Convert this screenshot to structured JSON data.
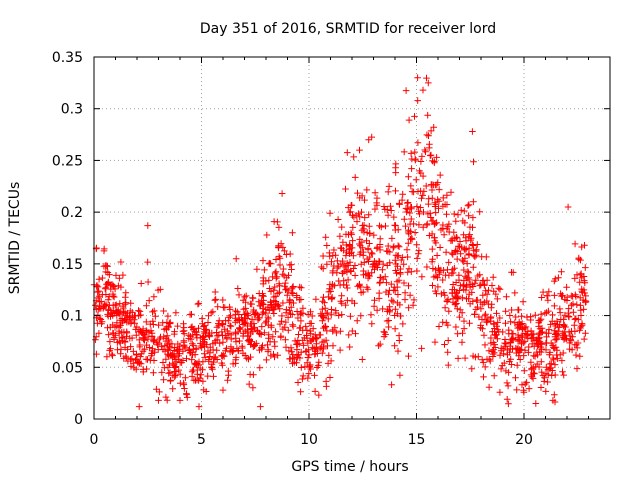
{
  "chart_data": {
    "type": "scatter",
    "title": "Day 351 of 2016, SRMTID for receiver lord",
    "xlabel": "GPS time / hours",
    "ylabel": "SRMTID / TECUs",
    "xlim": [
      0,
      24
    ],
    "ylim": [
      0,
      0.35
    ],
    "xticks": [
      "0",
      "5",
      "10",
      "15",
      "20"
    ],
    "yticks": [
      "0",
      "0.05",
      "0.1",
      "0.15",
      "0.2",
      "0.25",
      "0.3",
      "0.35"
    ],
    "grid": true,
    "marker": "plus",
    "series": [
      {
        "name": "SRMTID",
        "color": "#ff0000",
        "baseline_points": [
          {
            "x": 0.0,
            "y": 0.11
          },
          {
            "x": 0.5,
            "y": 0.12
          },
          {
            "x": 1.0,
            "y": 0.09
          },
          {
            "x": 2.0,
            "y": 0.08
          },
          {
            "x": 3.0,
            "y": 0.07
          },
          {
            "x": 4.0,
            "y": 0.06
          },
          {
            "x": 5.0,
            "y": 0.065
          },
          {
            "x": 6.0,
            "y": 0.075
          },
          {
            "x": 7.0,
            "y": 0.08
          },
          {
            "x": 8.0,
            "y": 0.1
          },
          {
            "x": 8.8,
            "y": 0.13
          },
          {
            "x": 9.5,
            "y": 0.08
          },
          {
            "x": 10.0,
            "y": 0.065
          },
          {
            "x": 10.6,
            "y": 0.085
          },
          {
            "x": 11.0,
            "y": 0.12
          },
          {
            "x": 12.0,
            "y": 0.16
          },
          {
            "x": 13.0,
            "y": 0.15
          },
          {
            "x": 14.0,
            "y": 0.13
          },
          {
            "x": 15.0,
            "y": 0.21
          },
          {
            "x": 15.5,
            "y": 0.22
          },
          {
            "x": 16.0,
            "y": 0.16
          },
          {
            "x": 17.0,
            "y": 0.14
          },
          {
            "x": 17.7,
            "y": 0.15
          },
          {
            "x": 18.0,
            "y": 0.1
          },
          {
            "x": 19.0,
            "y": 0.07
          },
          {
            "x": 20.0,
            "y": 0.07
          },
          {
            "x": 21.0,
            "y": 0.065
          },
          {
            "x": 22.0,
            "y": 0.09
          },
          {
            "x": 22.8,
            "y": 0.11
          }
        ],
        "spread_points": [
          {
            "x": 0.0,
            "y": 0.045
          },
          {
            "x": 1.0,
            "y": 0.035
          },
          {
            "x": 3.0,
            "y": 0.035
          },
          {
            "x": 5.0,
            "y": 0.03
          },
          {
            "x": 7.0,
            "y": 0.035
          },
          {
            "x": 8.5,
            "y": 0.05
          },
          {
            "x": 10.0,
            "y": 0.03
          },
          {
            "x": 11.5,
            "y": 0.06
          },
          {
            "x": 13.0,
            "y": 0.06
          },
          {
            "x": 15.0,
            "y": 0.09
          },
          {
            "x": 16.5,
            "y": 0.07
          },
          {
            "x": 18.0,
            "y": 0.05
          },
          {
            "x": 19.5,
            "y": 0.035
          },
          {
            "x": 21.0,
            "y": 0.035
          },
          {
            "x": 22.8,
            "y": 0.045
          }
        ],
        "notable_points": [
          {
            "x": 15.05,
            "y": 0.33
          },
          {
            "x": 15.55,
            "y": 0.325
          },
          {
            "x": 15.3,
            "y": 0.318
          },
          {
            "x": 15.8,
            "y": 0.282
          },
          {
            "x": 17.6,
            "y": 0.278
          },
          {
            "x": 12.35,
            "y": 0.26
          },
          {
            "x": 8.75,
            "y": 0.218
          },
          {
            "x": 22.05,
            "y": 0.205
          },
          {
            "x": 2.5,
            "y": 0.187
          },
          {
            "x": 3.0,
            "y": 0.018
          },
          {
            "x": 20.55,
            "y": 0.015
          },
          {
            "x": 4.0,
            "y": 0.018
          }
        ],
        "x_range": [
          0,
          22.9
        ],
        "sample_count": 2000
      }
    ]
  }
}
